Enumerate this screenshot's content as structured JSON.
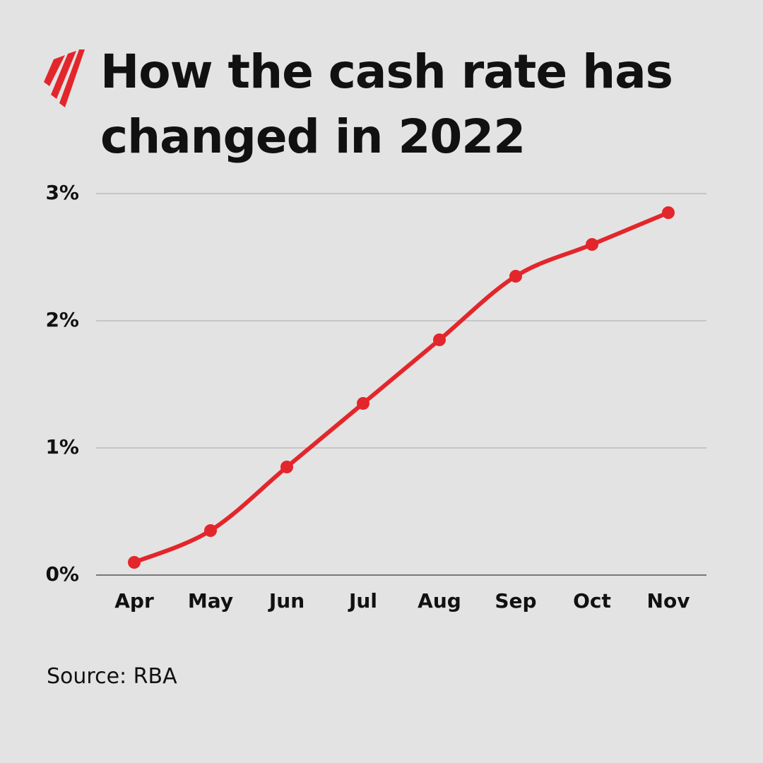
{
  "chart_data": {
    "type": "line",
    "title": "How the cash rate has changed in 2022",
    "source": "Source: RBA",
    "categories": [
      "Apr",
      "May",
      "Jun",
      "Jul",
      "Aug",
      "Sep",
      "Oct",
      "Nov"
    ],
    "values": [
      0.1,
      0.35,
      0.85,
      1.35,
      1.85,
      2.35,
      2.6,
      2.85
    ],
    "color": "#e3262b",
    "ylim": [
      0,
      3
    ],
    "yticks": [
      {
        "value": 0,
        "label": "0%"
      },
      {
        "value": 1,
        "label": "1%"
      },
      {
        "value": 2,
        "label": "2%"
      },
      {
        "value": 3,
        "label": "3%"
      }
    ],
    "grid": true
  }
}
